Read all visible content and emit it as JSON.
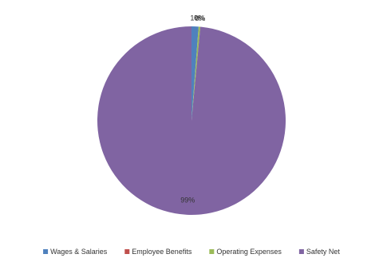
{
  "chart_data": {
    "type": "pie",
    "categories": [
      "Wages & Salaries",
      "Employee Benefits",
      "Operating Expenses",
      "Safety Net"
    ],
    "values": [
      1.2,
      0.0,
      0.3,
      98.5
    ],
    "value_labels": [
      "1%",
      "0%",
      "0%",
      "99%"
    ],
    "colors": [
      "#4f81bd",
      "#c0504d",
      "#9bbb59",
      "#8064a2"
    ],
    "legend": "bottom"
  }
}
